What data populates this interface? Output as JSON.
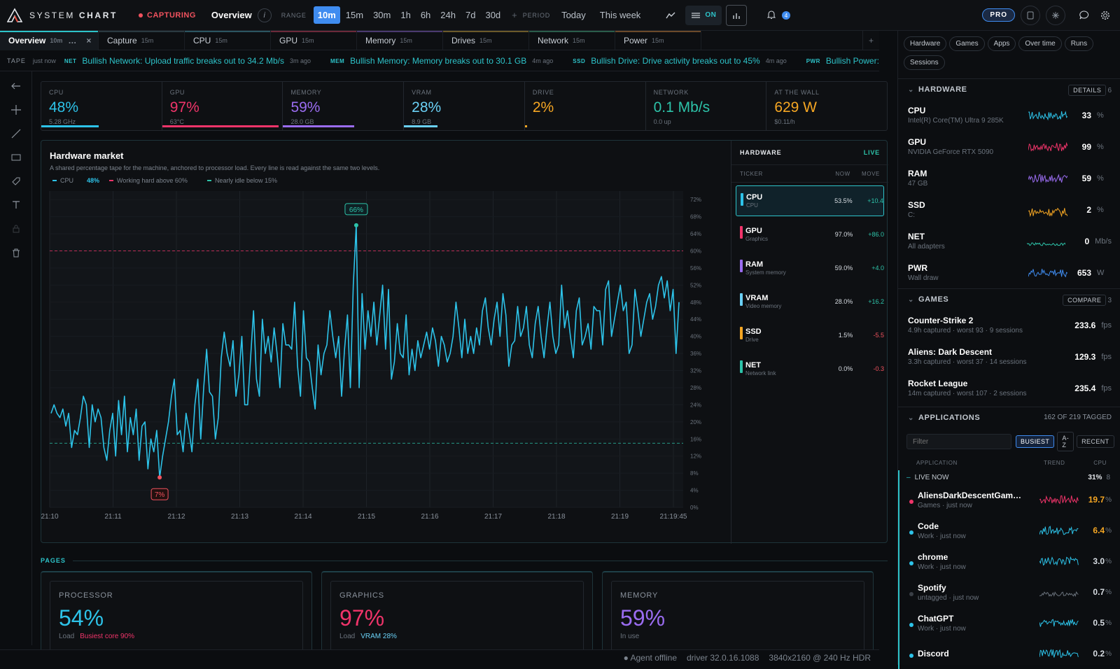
{
  "topbar": {
    "brand_a": "SYSTEM",
    "brand_b": "CHART",
    "capturing": "CAPTURING",
    "title": "Overview",
    "range_label": "RANGE",
    "ranges": [
      "10m",
      "15m",
      "30m",
      "1h",
      "6h",
      "24h",
      "7d",
      "30d"
    ],
    "period_label": "PERIOD",
    "periods": [
      "Today",
      "This week"
    ],
    "on_label": "ON",
    "pro_label": "PRO",
    "notif_count": "4"
  },
  "tabs": [
    {
      "label": "Overview",
      "range": "10m",
      "color": "#2dc3c9"
    },
    {
      "label": "Capture",
      "range": "15m",
      "color": "#2a3a40"
    },
    {
      "label": "CPU",
      "range": "15m",
      "color": "#2b5560"
    },
    {
      "label": "GPU",
      "range": "15m",
      "color": "#6b2a3a"
    },
    {
      "label": "Memory",
      "range": "15m",
      "color": "#4a3a6e"
    },
    {
      "label": "Drives",
      "range": "15m",
      "color": "#6b5a2a"
    },
    {
      "label": "Network",
      "range": "15m",
      "color": "#2a5c4a"
    },
    {
      "label": "Power",
      "range": "15m",
      "color": "#6b4a2a"
    }
  ],
  "tape": {
    "label": "TAPE",
    "time": "just now",
    "items": [
      {
        "key": "NET",
        "text": "Bullish Network: Upload traffic breaks out to 34.2 Mb/s",
        "ago": "3m ago"
      },
      {
        "key": "MEM",
        "text": "Bullish Memory: Memory breaks out to 30.1 GB",
        "ago": "4m ago"
      },
      {
        "key": "SSD",
        "text": "Bullish Drive: Drive activity breaks out to 45%",
        "ago": "4m ago"
      },
      {
        "key": "PWR",
        "text": "Bullish Power: Wall",
        "ago": ""
      }
    ]
  },
  "stats": [
    {
      "label": "CPU",
      "value": "48%",
      "sub": "5.28 GHz",
      "color": "#2dc3e9",
      "fill": 0.48
    },
    {
      "label": "GPU",
      "value": "97%",
      "sub": "63°C",
      "color": "#f0346a",
      "fill": 0.97
    },
    {
      "label": "MEMORY",
      "value": "59%",
      "sub": "28.0 GB",
      "color": "#9a6cf0",
      "fill": 0.59
    },
    {
      "label": "VRAM",
      "value": "28%",
      "sub": "8.9 GB",
      "color": "#6ad0f5",
      "fill": 0.28
    },
    {
      "label": "DRIVE",
      "value": "2%",
      "sub": "",
      "color": "#f5a623",
      "fill": 0.02
    },
    {
      "label": "NETWORK",
      "value": "0.1 Mb/s",
      "sub": "0.0 up",
      "color": "#2dc3a9",
      "fill": 0
    },
    {
      "label": "AT THE WALL",
      "value": "629 W",
      "sub": "$0.11/h",
      "color": "#f5a623",
      "fill": 0
    }
  ],
  "market": {
    "title": "Hardware market",
    "subtitle": "A shared percentage tape for the machine, anchored to processor load. Every line is read against the same two levels.",
    "legend": [
      {
        "label": "CPU",
        "value": "48%",
        "color": "#2dc3e9"
      },
      {
        "label": "Working hard above 60%",
        "value": "",
        "color": "#f0346a"
      },
      {
        "label": "Nearly idle below 15%",
        "value": "",
        "color": "#2dc3a9"
      }
    ]
  },
  "chart_data": {
    "type": "line",
    "series": [
      {
        "name": "CPU",
        "color": "#2dc3e9",
        "values": [
          22,
          24,
          22,
          21,
          23,
          19,
          22,
          14,
          18,
          17,
          21,
          26,
          24,
          14,
          24,
          20,
          23,
          21,
          14,
          11,
          18,
          22,
          12,
          25,
          17,
          26,
          13,
          21,
          17,
          23,
          11,
          19,
          20,
          9,
          16,
          13,
          18,
          7,
          12,
          16,
          20,
          26,
          30,
          17,
          18,
          13,
          22,
          18,
          13,
          24,
          30,
          16,
          28,
          37,
          27,
          26,
          16,
          21,
          35,
          41,
          36,
          33,
          39,
          26,
          31,
          40,
          24,
          24,
          35,
          46,
          30,
          26,
          44,
          36,
          40,
          34,
          42,
          36,
          28,
          43,
          38,
          38,
          37,
          48,
          33,
          26,
          46,
          35,
          34,
          28,
          23,
          38,
          31,
          36,
          38,
          46,
          40,
          35,
          40,
          26,
          37,
          45,
          28,
          52,
          66,
          28,
          50,
          37,
          46,
          40,
          48,
          38,
          45,
          52,
          37,
          51,
          30,
          34,
          43,
          36,
          35,
          45,
          31,
          37,
          32,
          39,
          35,
          38,
          41,
          37,
          42,
          39,
          33,
          40,
          38,
          34,
          36,
          40,
          48,
          42,
          35,
          44,
          36,
          40,
          36,
          42,
          38,
          46,
          49,
          42,
          38,
          44,
          48,
          40,
          50,
          45,
          33,
          38,
          39,
          47,
          40,
          42,
          47,
          38,
          35,
          43,
          47,
          40,
          35,
          42,
          48,
          40,
          36,
          38,
          52,
          42,
          46,
          40,
          35,
          46,
          49,
          38,
          40,
          43,
          37,
          47,
          46,
          46,
          38,
          51,
          53,
          40,
          44,
          48,
          52,
          46,
          48,
          36,
          38,
          51,
          46,
          40,
          44,
          48,
          50,
          44,
          47,
          52,
          54,
          49,
          53,
          46,
          51,
          36,
          48
        ]
      }
    ],
    "x_ticks": [
      "21:10",
      "21:11",
      "21:12",
      "21:13",
      "21:14",
      "21:15",
      "21:16",
      "21:17",
      "21:18",
      "21:19",
      "21:19:45"
    ],
    "y_ticks": [
      "72%",
      "68%",
      "64%",
      "60%",
      "56%",
      "52%",
      "48%",
      "44%",
      "40%",
      "36%",
      "32%",
      "28%",
      "24%",
      "20%",
      "16%",
      "12%",
      "8%",
      "4%",
      "0%"
    ],
    "ylim": [
      0,
      74
    ],
    "levels": [
      {
        "value": 60,
        "color": "#f0346a"
      },
      {
        "value": 15,
        "color": "#2dc3a9"
      }
    ],
    "max_label": "66%",
    "min_label": "7%"
  },
  "board": {
    "title": "HARDWARE",
    "live": "LIVE",
    "cols": [
      "TICKER",
      "NOW",
      "MOVE"
    ],
    "rows": [
      {
        "ticker": "CPU",
        "sub": "CPU",
        "now": "53.5%",
        "move": "+10.4",
        "color": "#2dc3e9",
        "dir": "up"
      },
      {
        "ticker": "GPU",
        "sub": "Graphics",
        "now": "97.0%",
        "move": "+86.0",
        "color": "#f0346a",
        "dir": "up"
      },
      {
        "ticker": "RAM",
        "sub": "System memory",
        "now": "59.0%",
        "move": "+4.0",
        "color": "#9a6cf0",
        "dir": "up"
      },
      {
        "ticker": "VRAM",
        "sub": "Video memory",
        "now": "28.0%",
        "move": "+16.2",
        "color": "#6ad0f5",
        "dir": "up"
      },
      {
        "ticker": "SSD",
        "sub": "Drive",
        "now": "1.5%",
        "move": "-5.5",
        "color": "#f5a623",
        "dir": "down"
      },
      {
        "ticker": "NET",
        "sub": "Network link",
        "now": "0.0%",
        "move": "-0.3",
        "color": "#2dc3a9",
        "dir": "down"
      }
    ]
  },
  "pages": {
    "label": "PAGES",
    "cards": [
      {
        "label": "PROCESSOR",
        "value": "54%",
        "sub": "Load",
        "extra": "Busiest core 90%",
        "color": "#2dc3e9",
        "extra_color": "#f0346a"
      },
      {
        "label": "GRAPHICS",
        "value": "97%",
        "sub": "Load",
        "extra": "VRAM 28%",
        "color": "#f0346a",
        "extra_color": "#6ad0f5"
      },
      {
        "label": "MEMORY",
        "value": "59%",
        "sub": "In use",
        "extra": "",
        "color": "#9a6cf0",
        "extra_color": "#9a6cf0"
      }
    ]
  },
  "status": {
    "agent": "● Agent offline",
    "driver": "driver 32.0.16.1088",
    "display": "3840x2160 @ 240 Hz HDR"
  },
  "right": {
    "chips": [
      "Hardware",
      "Games",
      "Apps",
      "Over time",
      "Runs",
      "Sessions"
    ],
    "hardware": {
      "title": "HARDWARE",
      "button": "DETAILS",
      "count": "6",
      "rows": [
        {
          "name": "CPU",
          "sub": "Intel(R) Core(TM) Ultra 9 285K",
          "value": "33",
          "unit": "%",
          "color": "#2dc3e9"
        },
        {
          "name": "GPU",
          "sub": "NVIDIA GeForce RTX 5090",
          "value": "99",
          "unit": "%",
          "color": "#f0346a"
        },
        {
          "name": "RAM",
          "sub": "47 GB",
          "value": "59",
          "unit": "%",
          "color": "#9a6cf0"
        },
        {
          "name": "SSD",
          "sub": "C:",
          "value": "2",
          "unit": "%",
          "color": "#f5a623"
        },
        {
          "name": "NET",
          "sub": "All adapters",
          "value": "0",
          "unit": "Mb/s",
          "color": "#2dc3a9"
        },
        {
          "name": "PWR",
          "sub": "Wall draw",
          "value": "653",
          "unit": "W",
          "color": "#3f8cf0"
        }
      ]
    },
    "games": {
      "title": "GAMES",
      "button": "COMPARE",
      "count": "3",
      "rows": [
        {
          "name": "Counter-Strike 2",
          "sub": "4.9h captured · worst 93 · 9 sessions",
          "value": "233.6",
          "unit": "fps"
        },
        {
          "name": "Aliens: Dark Descent",
          "sub": "3.3h captured · worst 37 · 14 sessions",
          "value": "129.3",
          "unit": "fps"
        },
        {
          "name": "Rocket League",
          "sub": "14m captured · worst 107 · 2 sessions",
          "value": "235.4",
          "unit": "fps"
        }
      ]
    },
    "apps": {
      "title": "APPLICATIONS",
      "tagged": "162 OF 219 TAGGED",
      "filter_placeholder": "Filter",
      "sorts": [
        "BUSIEST",
        "A-Z",
        "RECENT"
      ],
      "cols": [
        "APPLICATION",
        "TREND",
        "CPU"
      ],
      "live_label": "LIVE NOW",
      "live_pct": "31%",
      "live_count": "8",
      "rows": [
        {
          "name": "AliensDarkDescentGam…",
          "sub": "Games · just now",
          "value": "19.7",
          "color": "#f0346a",
          "vcolor": "#f5a623"
        },
        {
          "name": "Code",
          "sub": "Work · just now",
          "value": "6.4",
          "color": "#2dc3e9",
          "vcolor": "#f5a623"
        },
        {
          "name": "chrome",
          "sub": "Work · just now",
          "value": "3.0",
          "color": "#2dc3e9",
          "vcolor": "#d8dde3"
        },
        {
          "name": "Spotify",
          "sub": "untagged · just now",
          "value": "0.7",
          "color": "#3a3f46",
          "vcolor": "#d8dde3"
        },
        {
          "name": "ChatGPT",
          "sub": "Work · just now",
          "value": "0.5",
          "color": "#2dc3e9",
          "vcolor": "#d8dde3"
        },
        {
          "name": "Discord",
          "sub": "",
          "value": "0.2",
          "color": "#2dc3e9",
          "vcolor": "#d8dde3"
        }
      ]
    }
  }
}
